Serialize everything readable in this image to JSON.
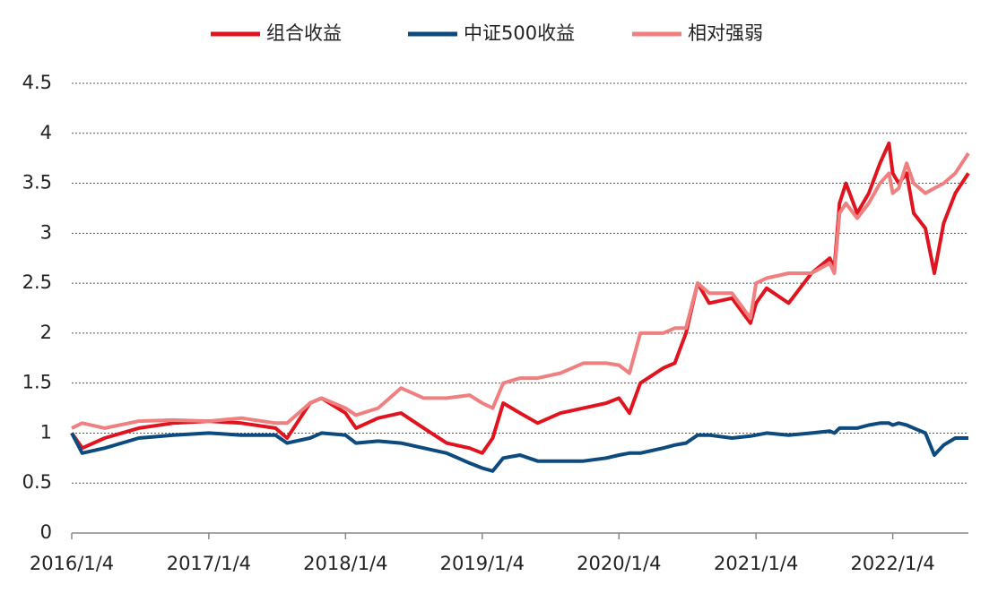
{
  "chart_data": {
    "type": "line",
    "x": [
      "2016/1/4",
      "2016/2/1",
      "2016/4/1",
      "2016/7/1",
      "2016/10/1",
      "2017/1/4",
      "2017/4/1",
      "2017/7/1",
      "2017/8/1",
      "2017/10/1",
      "2017/11/1",
      "2018/1/4",
      "2018/2/1",
      "2018/4/1",
      "2018/6/1",
      "2018/8/1",
      "2018/10/1",
      "2018/12/1",
      "2019/1/4",
      "2019/2/1",
      "2019/3/1",
      "2019/4/15",
      "2019/6/1",
      "2019/8/1",
      "2019/10/1",
      "2019/12/1",
      "2020/1/4",
      "2020/2/1",
      "2020/3/1",
      "2020/5/1",
      "2020/6/1",
      "2020/7/1",
      "2020/8/1",
      "2020/9/1",
      "2020/11/1",
      "2020/12/20",
      "2021/1/4",
      "2021/2/1",
      "2021/4/1",
      "2021/6/1",
      "2021/7/20",
      "2021/8/1",
      "2021/8/15",
      "2021/9/1",
      "2021/10/1",
      "2021/11/1",
      "2021/12/1",
      "2021/12/25",
      "2022/1/4",
      "2022/1/20",
      "2022/2/10",
      "2022/3/1",
      "2022/4/1",
      "2022/4/25",
      "2022/5/20",
      "2022/6/20",
      "2022/7/25"
    ],
    "series": [
      {
        "name": "组合收益",
        "color": "#e0141e",
        "values": [
          1.0,
          0.85,
          0.95,
          1.05,
          1.1,
          1.12,
          1.1,
          1.05,
          0.95,
          1.3,
          1.35,
          1.2,
          1.05,
          1.15,
          1.2,
          1.05,
          0.9,
          0.85,
          0.8,
          0.95,
          1.3,
          1.2,
          1.1,
          1.2,
          1.25,
          1.3,
          1.35,
          1.2,
          1.5,
          1.65,
          1.7,
          2.0,
          2.5,
          2.3,
          2.35,
          2.1,
          2.3,
          2.45,
          2.3,
          2.6,
          2.75,
          2.65,
          3.3,
          3.5,
          3.2,
          3.4,
          3.7,
          3.9,
          3.6,
          3.5,
          3.6,
          3.2,
          3.05,
          2.6,
          3.1,
          3.4,
          3.6
        ]
      },
      {
        "name": "中证500收益",
        "color": "#0d4a7e",
        "values": [
          1.0,
          0.8,
          0.85,
          0.95,
          0.98,
          1.0,
          0.98,
          0.98,
          0.9,
          0.95,
          1.0,
          0.98,
          0.9,
          0.92,
          0.9,
          0.85,
          0.8,
          0.7,
          0.65,
          0.62,
          0.75,
          0.78,
          0.72,
          0.72,
          0.72,
          0.75,
          0.78,
          0.8,
          0.8,
          0.85,
          0.88,
          0.9,
          0.98,
          0.98,
          0.95,
          0.97,
          0.98,
          1.0,
          0.98,
          1.0,
          1.02,
          1.0,
          1.05,
          1.05,
          1.05,
          1.08,
          1.1,
          1.1,
          1.08,
          1.1,
          1.08,
          1.05,
          1.0,
          0.78,
          0.88,
          0.95,
          0.95
        ]
      },
      {
        "name": "相对强弱",
        "color": "#f08080",
        "values": [
          1.05,
          1.1,
          1.05,
          1.12,
          1.13,
          1.12,
          1.15,
          1.1,
          1.1,
          1.3,
          1.35,
          1.25,
          1.18,
          1.25,
          1.45,
          1.35,
          1.35,
          1.38,
          1.3,
          1.25,
          1.5,
          1.55,
          1.55,
          1.6,
          1.7,
          1.7,
          1.68,
          1.6,
          2.0,
          2.0,
          2.05,
          2.05,
          2.5,
          2.4,
          2.4,
          2.15,
          2.5,
          2.55,
          2.6,
          2.6,
          2.7,
          2.6,
          3.2,
          3.3,
          3.15,
          3.3,
          3.5,
          3.6,
          3.4,
          3.45,
          3.7,
          3.5,
          3.4,
          3.45,
          3.5,
          3.6,
          3.8
        ]
      }
    ],
    "xlim": [
      "2016/1/4",
      "2022/7/25"
    ],
    "xticks": [
      "2016/1/4",
      "2017/1/4",
      "2018/1/4",
      "2019/1/4",
      "2020/1/4",
      "2021/1/4",
      "2022/1/4"
    ],
    "ylim": [
      0,
      4.5
    ],
    "yticks": [
      0,
      0.5,
      1,
      1.5,
      2,
      2.5,
      3,
      3.5,
      4,
      4.5
    ],
    "grid": true,
    "legend": "top"
  }
}
